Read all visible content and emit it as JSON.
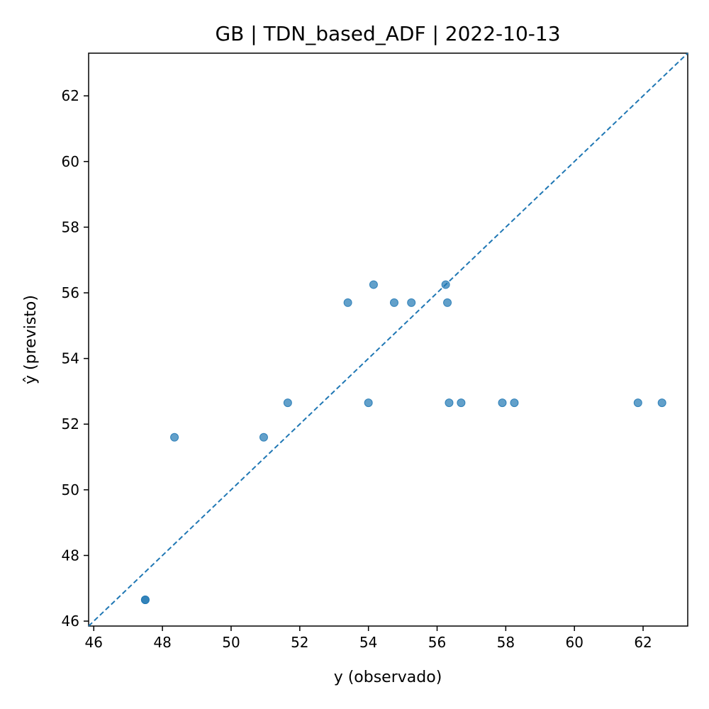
{
  "chart_data": {
    "type": "scatter",
    "title": "GB | TDN_based_ADF | 2022-10-13",
    "xlabel": "y (observado)",
    "ylabel": "ŷ (previsto)",
    "xlim": [
      45.85,
      63.3
    ],
    "ylim": [
      45.85,
      63.3
    ],
    "xticks": [
      46,
      48,
      50,
      52,
      54,
      56,
      58,
      60,
      62
    ],
    "yticks": [
      46,
      48,
      50,
      52,
      54,
      56,
      58,
      60,
      62
    ],
    "grid": false,
    "legend": "none",
    "reference_line": {
      "type": "identity",
      "style": "dashed"
    },
    "colors": {
      "points": "#1f77b4",
      "reference_line": "#1f77b4"
    },
    "points": [
      {
        "x": 47.5,
        "y": 46.65
      },
      {
        "x": 47.5,
        "y": 46.65
      },
      {
        "x": 48.35,
        "y": 51.6
      },
      {
        "x": 50.95,
        "y": 51.6
      },
      {
        "x": 51.65,
        "y": 52.65
      },
      {
        "x": 53.4,
        "y": 55.7
      },
      {
        "x": 54.0,
        "y": 52.65
      },
      {
        "x": 54.15,
        "y": 56.25
      },
      {
        "x": 54.75,
        "y": 55.7
      },
      {
        "x": 55.25,
        "y": 55.7
      },
      {
        "x": 56.25,
        "y": 56.25
      },
      {
        "x": 56.3,
        "y": 55.7
      },
      {
        "x": 56.35,
        "y": 52.65
      },
      {
        "x": 56.7,
        "y": 52.65
      },
      {
        "x": 57.9,
        "y": 52.65
      },
      {
        "x": 58.25,
        "y": 52.65
      },
      {
        "x": 61.85,
        "y": 52.65
      },
      {
        "x": 62.55,
        "y": 52.65
      }
    ]
  }
}
